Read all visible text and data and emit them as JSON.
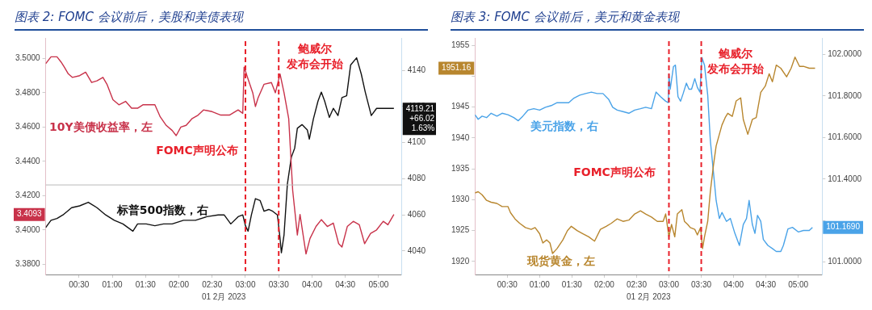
{
  "chart_data": [
    {
      "type": "line",
      "title": "图表 2:  FOMC 会议前后，美股和美债表现",
      "xlabel": "01 2月 2023",
      "marker": "none",
      "grid": false,
      "xlim": [
        0,
        5.35
      ],
      "xticks": [
        {
          "value": 0.5,
          "label": "00:30"
        },
        {
          "value": 1,
          "label": "01:00"
        },
        {
          "value": 1.5,
          "label": "01:30"
        },
        {
          "value": 2,
          "label": "02:00"
        },
        {
          "value": 2.5,
          "label": "02:30"
        },
        {
          "value": 3,
          "label": "03:00"
        },
        {
          "value": 3.5,
          "label": "03:30"
        },
        {
          "value": 4,
          "label": "04:00"
        },
        {
          "value": 4.5,
          "label": "04:30"
        },
        {
          "value": 5,
          "label": "05:00"
        }
      ],
      "ylim": [
        3.374,
        3.512
      ],
      "yticks": [
        {
          "value": 3.38,
          "label": "3.3800"
        },
        {
          "value": 3.4,
          "label": "3.4000"
        },
        {
          "value": 3.42,
          "label": "3.4200"
        },
        {
          "value": 3.44,
          "label": "3.4400"
        },
        {
          "value": 3.46,
          "label": "3.4600"
        },
        {
          "value": 3.48,
          "label": "3.4800"
        },
        {
          "value": 3.5,
          "label": "3.5000"
        }
      ],
      "y2lim": [
        4027,
        4158
      ],
      "y2ticks": [
        4040,
        4060,
        4080,
        4100,
        4120,
        4140
      ],
      "series": [
        {
          "name": "10Y美债收益率，左",
          "color": "#c8324a",
          "x": [
            0,
            0.08,
            0.17,
            0.23,
            0.28,
            0.34,
            0.4,
            0.51,
            0.6,
            0.69,
            0.77,
            0.86,
            0.92,
            1.01,
            1.1,
            1.2,
            1.29,
            1.38,
            1.46,
            1.55,
            1.64,
            1.72,
            1.81,
            1.9,
            1.96,
            2.03,
            2.11,
            2.2,
            2.29,
            2.37,
            2.5,
            2.63,
            2.76,
            2.89,
            2.96,
            2.98,
            3.04,
            3.11,
            3.15,
            3.19,
            3.28,
            3.39,
            3.45,
            3.52,
            3.58,
            3.65,
            3.71,
            3.78,
            3.82,
            3.89,
            3.91,
            3.97,
            4.06,
            4.14,
            4.23,
            4.32,
            4.4,
            4.45,
            4.53,
            4.62,
            4.71,
            4.79,
            4.88,
            4.97,
            5.07,
            5.14,
            5.23
          ],
          "values": [
            3.497,
            3.501,
            3.501,
            3.498,
            3.495,
            3.491,
            3.489,
            3.49,
            3.492,
            3.486,
            3.487,
            3.489,
            3.485,
            3.476,
            3.473,
            3.475,
            3.471,
            3.471,
            3.473,
            3.473,
            3.473,
            3.466,
            3.461,
            3.458,
            3.455,
            3.46,
            3.461,
            3.465,
            3.467,
            3.47,
            3.469,
            3.467,
            3.467,
            3.47,
            3.468,
            3.495,
            3.488,
            3.48,
            3.472,
            3.477,
            3.485,
            3.486,
            3.48,
            3.491,
            3.48,
            3.465,
            3.423,
            3.397,
            3.409,
            3.391,
            3.386,
            3.395,
            3.402,
            3.406,
            3.402,
            3.404,
            3.392,
            3.39,
            3.402,
            3.405,
            3.403,
            3.392,
            3.398,
            3.4,
            3.405,
            3.403,
            3.409
          ],
          "axis": "y"
        },
        {
          "name": "标普500指数，右",
          "color": "#111111",
          "x": [
            0,
            0.08,
            0.17,
            0.26,
            0.39,
            0.51,
            0.64,
            0.77,
            0.9,
            1.03,
            1.16,
            1.31,
            1.38,
            1.51,
            1.64,
            1.77,
            1.9,
            2.07,
            2.25,
            2.42,
            2.59,
            2.68,
            2.78,
            2.89,
            2.96,
            3.0,
            3.04,
            3.09,
            3.15,
            3.22,
            3.28,
            3.35,
            3.41,
            3.48,
            3.52,
            3.54,
            3.58,
            3.63,
            3.69,
            3.74,
            3.78,
            3.85,
            3.93,
            3.96,
            4.02,
            4.09,
            4.14,
            4.19,
            4.26,
            4.32,
            4.39,
            4.45,
            4.52,
            4.58,
            4.67,
            4.74,
            4.8,
            4.89,
            4.97,
            5.1,
            5.23
          ],
          "values": [
            4053,
            4057,
            4058,
            4060,
            4064,
            4065,
            4067,
            4064,
            4060,
            4057,
            4055,
            4051,
            4055,
            4055,
            4054,
            4055,
            4055,
            4057,
            4057,
            4059,
            4060,
            4060,
            4055,
            4059,
            4060,
            4054,
            4051,
            4060,
            4069,
            4068,
            4062,
            4063,
            4062,
            4060,
            4047,
            4039,
            4049,
            4077,
            4092,
            4097,
            4108,
            4110,
            4107,
            4102,
            4113,
            4123,
            4128,
            4123,
            4114,
            4119,
            4115,
            4125,
            4126,
            4143,
            4147,
            4138,
            4128,
            4115,
            4119,
            4119,
            4119
          ],
          "axis": "y2"
        }
      ],
      "ref_lines": [
        {
          "axis": "x",
          "value": 3,
          "label": "FOMC声明公布",
          "color": "#e8202a",
          "line_style": "dashed"
        },
        {
          "axis": "x",
          "value": 3.5,
          "label": "鲍威尔发布会开始",
          "color": "#e8202a",
          "line_style": "dashed"
        },
        {
          "axis": "y2",
          "value": 4076.6,
          "color": "#bbbbbb",
          "line_style": "solid"
        }
      ],
      "annotations": [
        "3.4093",
        "4119.21\n+66.02\n1.63%"
      ]
    },
    {
      "type": "line",
      "title": "图表 3:  FOMC 会议前后，美元和黄金表现",
      "xlabel": "01 2月 2023",
      "marker": "none",
      "grid": false,
      "xlim": [
        0,
        5.37
      ],
      "xticks": [
        {
          "value": 0.5,
          "label": "00:30"
        },
        {
          "value": 1,
          "label": "01:00"
        },
        {
          "value": 1.5,
          "label": "01:30"
        },
        {
          "value": 2,
          "label": "02:00"
        },
        {
          "value": 2.5,
          "label": "02:30"
        },
        {
          "value": 3,
          "label": "03:00"
        },
        {
          "value": 3.5,
          "label": "03:30"
        },
        {
          "value": 4,
          "label": "04:00"
        },
        {
          "value": 4.5,
          "label": "04:30"
        },
        {
          "value": 5,
          "label": "05:00"
        }
      ],
      "ylim": [
        1917.9,
        1956.2
      ],
      "yticks": [
        1920,
        1925,
        1930,
        1935,
        1940,
        1945,
        {
          "value": 1950,
          "label": null
        },
        1955
      ],
      "y2lim": [
        100.94,
        102.08
      ],
      "y2ticks": [
        {
          "value": 101,
          "label": "101.0000"
        },
        {
          "value": 101.2,
          "label": null
        },
        {
          "value": 101.4,
          "label": "101.4000"
        },
        {
          "value": 101.6,
          "label": "101.6000"
        },
        {
          "value": 101.8,
          "label": "101.8000"
        },
        {
          "value": 102,
          "label": "102.0000"
        }
      ],
      "series": [
        {
          "name": "现货黄金，左",
          "color": "#b8862e",
          "x": [
            0,
            0.05,
            0.11,
            0.18,
            0.25,
            0.34,
            0.42,
            0.51,
            0.55,
            0.62,
            0.69,
            0.78,
            0.87,
            0.93,
            1.0,
            1.05,
            1.11,
            1.16,
            1.2,
            1.27,
            1.36,
            1.43,
            1.49,
            1.58,
            1.67,
            1.76,
            1.85,
            1.94,
            2.03,
            2.11,
            2.2,
            2.29,
            2.38,
            2.47,
            2.56,
            2.64,
            2.73,
            2.82,
            2.91,
            2.95,
            3.0,
            3.04,
            3.09,
            3.13,
            3.2,
            3.24,
            3.29,
            3.33,
            3.4,
            3.44,
            3.49,
            3.52,
            3.55,
            3.6,
            3.64,
            3.69,
            3.73,
            3.78,
            3.82,
            3.87,
            3.91,
            3.98,
            4.04,
            4.11,
            4.15,
            4.22,
            4.29,
            4.35,
            4.42,
            4.49,
            4.55,
            4.6,
            4.66,
            4.73,
            4.82,
            4.89,
            4.95,
            5.02,
            5.08,
            5.17,
            5.26
          ],
          "values": [
            1931.1,
            1931.3,
            1930.8,
            1929.9,
            1929.6,
            1929.4,
            1928.9,
            1928.9,
            1927.9,
            1926.9,
            1926.2,
            1925.5,
            1925.2,
            1925.5,
            1924.5,
            1923.0,
            1923.5,
            1923.0,
            1921.3,
            1922.1,
            1923.5,
            1925.0,
            1925.7,
            1925.0,
            1924.5,
            1924.0,
            1923.3,
            1925.2,
            1925.7,
            1926.2,
            1926.9,
            1926.5,
            1926.7,
            1927.7,
            1928.2,
            1927.7,
            1927.2,
            1926.5,
            1926.5,
            1927.7,
            1924.0,
            1926.0,
            1924.0,
            1927.7,
            1928.4,
            1926.5,
            1926.0,
            1925.5,
            1925.2,
            1924.3,
            1925.5,
            1922.1,
            1924.0,
            1926.5,
            1931.3,
            1935.7,
            1938.7,
            1940.6,
            1942.1,
            1943.3,
            1944.0,
            1943.5,
            1946.0,
            1946.5,
            1943.0,
            1940.6,
            1943.0,
            1943.3,
            1947.4,
            1948.4,
            1950.4,
            1949.1,
            1951.8,
            1951.3,
            1949.9,
            1951.3,
            1953.1,
            1951.6,
            1951.6,
            1951.3,
            1951.3
          ],
          "axis": "y"
        },
        {
          "name": "美元指数，右",
          "color": "#4aa3e8",
          "x": [
            0,
            0.05,
            0.11,
            0.18,
            0.25,
            0.34,
            0.42,
            0.51,
            0.6,
            0.67,
            0.74,
            0.82,
            0.91,
            1.0,
            1.09,
            1.18,
            1.27,
            1.36,
            1.45,
            1.53,
            1.62,
            1.71,
            1.8,
            1.89,
            1.98,
            2.07,
            2.13,
            2.2,
            2.29,
            2.38,
            2.47,
            2.56,
            2.64,
            2.73,
            2.8,
            2.87,
            2.95,
            2.99,
            3.0,
            3.02,
            3.07,
            3.1,
            3.14,
            3.18,
            3.22,
            3.27,
            3.31,
            3.35,
            3.4,
            3.44,
            3.48,
            3.51,
            3.55,
            3.6,
            3.64,
            3.69,
            3.73,
            3.78,
            3.82,
            3.89,
            3.95,
            4.02,
            4.09,
            4.15,
            4.2,
            4.24,
            4.29,
            4.33,
            4.37,
            4.42,
            4.46,
            4.53,
            4.6,
            4.66,
            4.73,
            4.77,
            4.84,
            4.91,
            5.0,
            5.08,
            5.17,
            5.22
          ],
          "values": [
            101.71,
            101.688,
            101.703,
            101.696,
            101.717,
            101.703,
            101.717,
            101.71,
            101.696,
            101.681,
            101.703,
            101.732,
            101.739,
            101.732,
            101.746,
            101.754,
            101.768,
            101.768,
            101.768,
            101.79,
            101.804,
            101.812,
            101.819,
            101.812,
            101.812,
            101.783,
            101.746,
            101.732,
            101.725,
            101.717,
            101.732,
            101.739,
            101.746,
            101.739,
            101.819,
            101.797,
            101.775,
            101.768,
            101.906,
            101.833,
            101.942,
            101.949,
            101.797,
            101.775,
            101.812,
            101.862,
            101.833,
            101.833,
            101.884,
            101.841,
            101.819,
            101.986,
            101.949,
            101.804,
            101.587,
            101.428,
            101.297,
            101.21,
            101.239,
            101.196,
            101.21,
            101.138,
            101.08,
            101.181,
            101.21,
            101.297,
            101.181,
            101.138,
            101.225,
            101.196,
            101.109,
            101.08,
            101.065,
            101.051,
            101.051,
            101.08,
            101.159,
            101.167,
            101.145,
            101.152,
            101.152,
            101.167
          ],
          "axis": "y2"
        }
      ],
      "ref_lines": [
        {
          "axis": "x",
          "value": 3,
          "label": "FOMC声明公布",
          "color": "#e8202a",
          "line_style": "dashed"
        },
        {
          "axis": "x",
          "value": 3.5,
          "label": "鲍威尔发布会开始",
          "color": "#e8202a",
          "line_style": "dashed"
        }
      ],
      "annotations": [
        "1951.16",
        "101.1690"
      ]
    }
  ]
}
